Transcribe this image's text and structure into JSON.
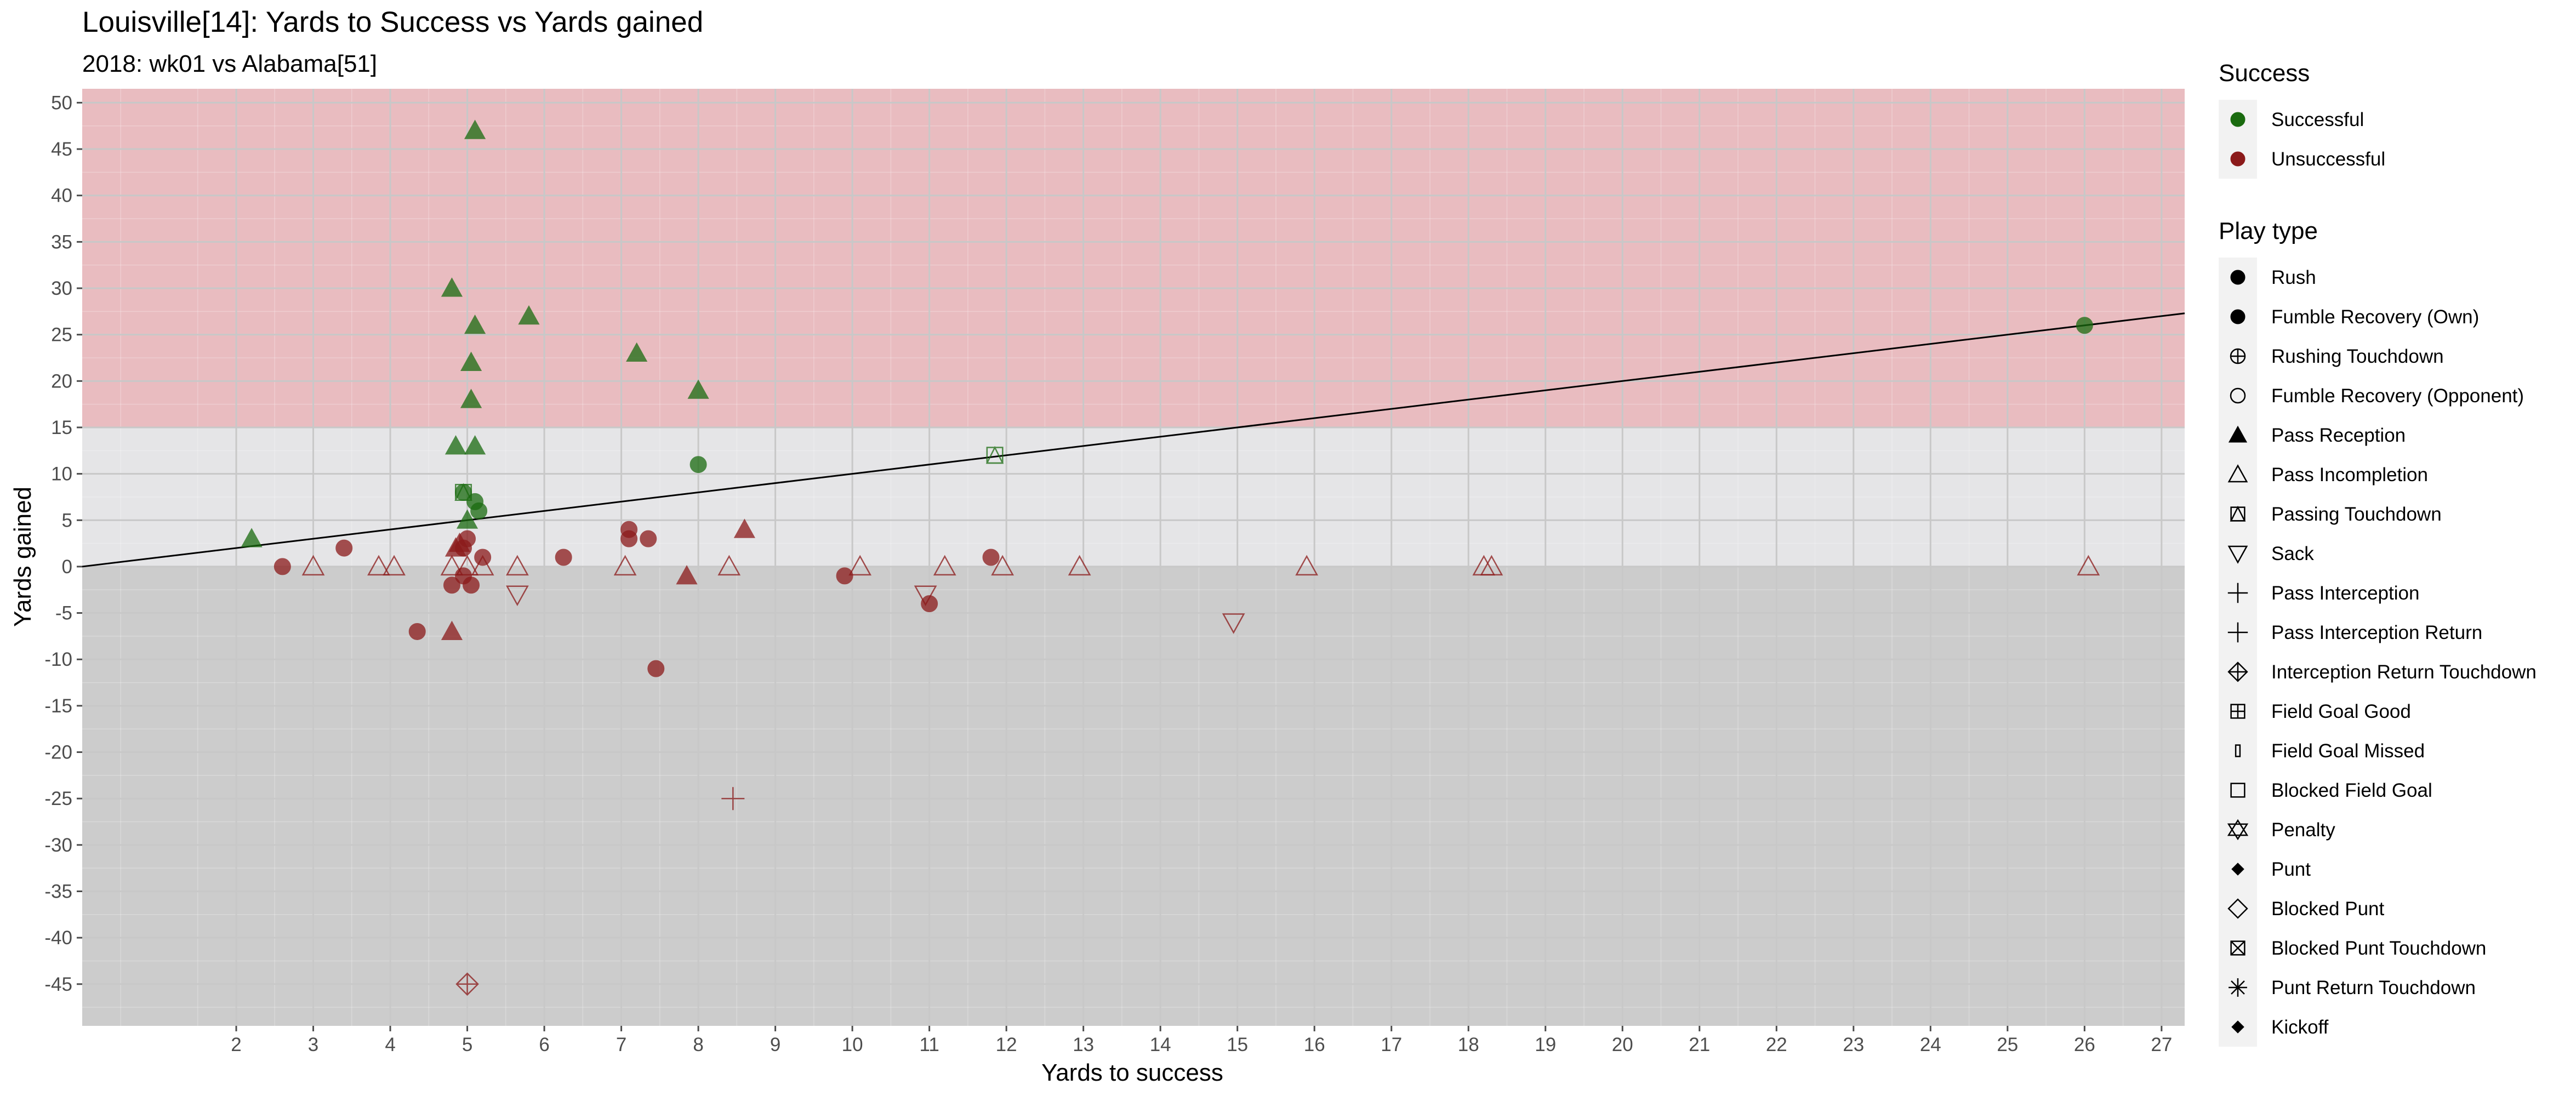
{
  "chart_data": {
    "type": "scatter",
    "title": "Louisville[14]: Yards to Success vs Yards gained",
    "subtitle": "2018: wk01 vs Alabama[51]",
    "xlabel": "Yards to success",
    "ylabel": "Yards gained",
    "xlim": [
      0,
      27.3
    ],
    "ylim": [
      -49.5,
      51.5
    ],
    "xticks": [
      2,
      3,
      4,
      5,
      6,
      7,
      8,
      9,
      10,
      11,
      12,
      13,
      14,
      15,
      16,
      17,
      18,
      19,
      20,
      21,
      22,
      23,
      24,
      25,
      26,
      27
    ],
    "yticks": [
      -45,
      -40,
      -35,
      -30,
      -25,
      -20,
      -15,
      -10,
      -5,
      0,
      5,
      10,
      15,
      20,
      25,
      30,
      35,
      40,
      45,
      50
    ],
    "grid": true,
    "bands": [
      {
        "from": 15,
        "to": 51.5,
        "color": "#e9bcc0"
      },
      {
        "from": 0,
        "to": 15,
        "color": "#e5e5e7"
      },
      {
        "from": -49.5,
        "to": 0,
        "color": "#cccccc"
      }
    ],
    "reference_line": {
      "slope": 1,
      "intercept": 0,
      "color": "#000000"
    },
    "colors": {
      "Successful": "#1a6b0f",
      "Unsuccessful": "#8b1a1a"
    },
    "points": [
      {
        "x": 2.2,
        "y": 3,
        "shape": "triangle",
        "success": "Successful"
      },
      {
        "x": 4.8,
        "y": 30,
        "shape": "triangle",
        "success": "Successful"
      },
      {
        "x": 5.1,
        "y": 47,
        "shape": "triangle",
        "success": "Successful"
      },
      {
        "x": 5.1,
        "y": 26,
        "shape": "triangle",
        "success": "Successful"
      },
      {
        "x": 5.05,
        "y": 22,
        "shape": "triangle",
        "success": "Successful"
      },
      {
        "x": 5.05,
        "y": 18,
        "shape": "triangle",
        "success": "Successful"
      },
      {
        "x": 4.85,
        "y": 13,
        "shape": "triangle",
        "success": "Successful"
      },
      {
        "x": 5.1,
        "y": 13,
        "shape": "triangle",
        "success": "Successful"
      },
      {
        "x": 5.8,
        "y": 27,
        "shape": "triangle",
        "success": "Successful"
      },
      {
        "x": 7.2,
        "y": 23,
        "shape": "triangle",
        "success": "Successful"
      },
      {
        "x": 8.0,
        "y": 19,
        "shape": "triangle",
        "success": "Successful"
      },
      {
        "x": 5.0,
        "y": 5,
        "shape": "triangle",
        "success": "Successful"
      },
      {
        "x": 4.95,
        "y": 8,
        "shape": "circle",
        "success": "Successful"
      },
      {
        "x": 5.1,
        "y": 7,
        "shape": "circle",
        "success": "Successful"
      },
      {
        "x": 5.15,
        "y": 6,
        "shape": "circle",
        "success": "Successful"
      },
      {
        "x": 8.0,
        "y": 11,
        "shape": "circle",
        "success": "Successful"
      },
      {
        "x": 26.0,
        "y": 26,
        "shape": "circle",
        "success": "Successful"
      },
      {
        "x": 4.95,
        "y": 8,
        "shape": "boxx",
        "success": "Successful"
      },
      {
        "x": 11.85,
        "y": 12,
        "shape": "boxx",
        "success": "Successful"
      },
      {
        "x": 2.6,
        "y": 0,
        "shape": "circle",
        "success": "Unsuccessful"
      },
      {
        "x": 3.4,
        "y": 2,
        "shape": "circle",
        "success": "Unsuccessful"
      },
      {
        "x": 4.35,
        "y": -7,
        "shape": "circle",
        "success": "Unsuccessful"
      },
      {
        "x": 4.8,
        "y": -2,
        "shape": "circle",
        "success": "Unsuccessful"
      },
      {
        "x": 4.95,
        "y": -1,
        "shape": "circle",
        "success": "Unsuccessful"
      },
      {
        "x": 5.0,
        "y": 3,
        "shape": "circle",
        "success": "Unsuccessful"
      },
      {
        "x": 4.95,
        "y": 2,
        "shape": "circle",
        "success": "Unsuccessful"
      },
      {
        "x": 5.05,
        "y": -2,
        "shape": "circle",
        "success": "Unsuccessful"
      },
      {
        "x": 5.2,
        "y": 1,
        "shape": "circle",
        "success": "Unsuccessful"
      },
      {
        "x": 6.25,
        "y": 1,
        "shape": "circle",
        "success": "Unsuccessful"
      },
      {
        "x": 7.1,
        "y": 4,
        "shape": "circle",
        "success": "Unsuccessful"
      },
      {
        "x": 7.1,
        "y": 3,
        "shape": "circle",
        "success": "Unsuccessful"
      },
      {
        "x": 7.35,
        "y": 3,
        "shape": "circle",
        "success": "Unsuccessful"
      },
      {
        "x": 7.45,
        "y": -11,
        "shape": "circle",
        "success": "Unsuccessful"
      },
      {
        "x": 9.9,
        "y": -1,
        "shape": "circle",
        "success": "Unsuccessful"
      },
      {
        "x": 11.0,
        "y": -4,
        "shape": "circle",
        "success": "Unsuccessful"
      },
      {
        "x": 11.8,
        "y": 1,
        "shape": "circle",
        "success": "Unsuccessful"
      },
      {
        "x": 4.8,
        "y": -7,
        "shape": "triangle",
        "success": "Unsuccessful"
      },
      {
        "x": 4.85,
        "y": 2,
        "shape": "triangle",
        "success": "Unsuccessful"
      },
      {
        "x": 4.9,
        "y": 2.5,
        "shape": "triangle",
        "success": "Unsuccessful"
      },
      {
        "x": 7.85,
        "y": -1,
        "shape": "triangle",
        "success": "Unsuccessful"
      },
      {
        "x": 8.6,
        "y": 4,
        "shape": "triangle",
        "success": "Unsuccessful"
      },
      {
        "x": 3.0,
        "y": 0,
        "shape": "triangle-open",
        "success": "Unsuccessful"
      },
      {
        "x": 3.85,
        "y": 0,
        "shape": "triangle-open",
        "success": "Unsuccessful"
      },
      {
        "x": 4.05,
        "y": 0,
        "shape": "triangle-open",
        "success": "Unsuccessful"
      },
      {
        "x": 4.8,
        "y": 0,
        "shape": "triangle-open",
        "success": "Unsuccessful"
      },
      {
        "x": 5.0,
        "y": 0,
        "shape": "triangle-open",
        "success": "Unsuccessful"
      },
      {
        "x": 5.2,
        "y": 0,
        "shape": "triangle-open",
        "success": "Unsuccessful"
      },
      {
        "x": 5.65,
        "y": 0,
        "shape": "triangle-open",
        "success": "Unsuccessful"
      },
      {
        "x": 7.05,
        "y": 0,
        "shape": "triangle-open",
        "success": "Unsuccessful"
      },
      {
        "x": 8.4,
        "y": 0,
        "shape": "triangle-open",
        "success": "Unsuccessful"
      },
      {
        "x": 10.1,
        "y": 0,
        "shape": "triangle-open",
        "success": "Unsuccessful"
      },
      {
        "x": 11.2,
        "y": 0,
        "shape": "triangle-open",
        "success": "Unsuccessful"
      },
      {
        "x": 11.95,
        "y": 0,
        "shape": "triangle-open",
        "success": "Unsuccessful"
      },
      {
        "x": 12.95,
        "y": 0,
        "shape": "triangle-open",
        "success": "Unsuccessful"
      },
      {
        "x": 15.9,
        "y": 0,
        "shape": "triangle-open",
        "success": "Unsuccessful"
      },
      {
        "x": 18.2,
        "y": 0,
        "shape": "triangle-open",
        "success": "Unsuccessful"
      },
      {
        "x": 18.3,
        "y": 0,
        "shape": "triangle-open",
        "success": "Unsuccessful"
      },
      {
        "x": 26.05,
        "y": 0,
        "shape": "triangle-open",
        "success": "Unsuccessful"
      },
      {
        "x": 5.65,
        "y": -3,
        "shape": "triangle-down",
        "success": "Unsuccessful"
      },
      {
        "x": 10.95,
        "y": -3,
        "shape": "triangle-down",
        "success": "Unsuccessful"
      },
      {
        "x": 14.95,
        "y": -6,
        "shape": "triangle-down",
        "success": "Unsuccessful"
      },
      {
        "x": 8.45,
        "y": -25,
        "shape": "plus",
        "success": "Unsuccessful"
      },
      {
        "x": 5.0,
        "y": -45,
        "shape": "diamondplus",
        "success": "Unsuccessful"
      }
    ],
    "legends": [
      {
        "title": "Success",
        "items": [
          {
            "label": "Successful",
            "shape": "circle",
            "color": "#1a6b0f"
          },
          {
            "label": "Unsuccessful",
            "shape": "circle",
            "color": "#8b1a1a"
          }
        ]
      },
      {
        "title": "Play type",
        "items": [
          {
            "label": "Rush",
            "shape": "circle"
          },
          {
            "label": "Fumble Recovery (Own)",
            "shape": "circle"
          },
          {
            "label": "Rushing Touchdown",
            "shape": "circleplus"
          },
          {
            "label": "Fumble Recovery (Opponent)",
            "shape": "circle-open"
          },
          {
            "label": "Pass Reception",
            "shape": "triangle"
          },
          {
            "label": "Pass Incompletion",
            "shape": "triangle-open"
          },
          {
            "label": "Passing Touchdown",
            "shape": "boxx"
          },
          {
            "label": "Sack",
            "shape": "triangle-down"
          },
          {
            "label": "Pass Interception",
            "shape": "plus"
          },
          {
            "label": "Pass Interception Return",
            "shape": "plus"
          },
          {
            "label": "Interception Return Touchdown",
            "shape": "diamondplus"
          },
          {
            "label": "Field Goal Good",
            "shape": "squareplus"
          },
          {
            "label": "Field Goal Missed",
            "shape": "thinrect"
          },
          {
            "label": "Blocked Field Goal",
            "shape": "square-open"
          },
          {
            "label": "Penalty",
            "shape": "star-of-david"
          },
          {
            "label": "Punt",
            "shape": "diamond"
          },
          {
            "label": "Blocked Punt",
            "shape": "diamond-open"
          },
          {
            "label": "Blocked Punt Touchdown",
            "shape": "squarex"
          },
          {
            "label": "Punt Return Touchdown",
            "shape": "asterisk"
          },
          {
            "label": "Kickoff",
            "shape": "diamond"
          }
        ]
      }
    ]
  }
}
